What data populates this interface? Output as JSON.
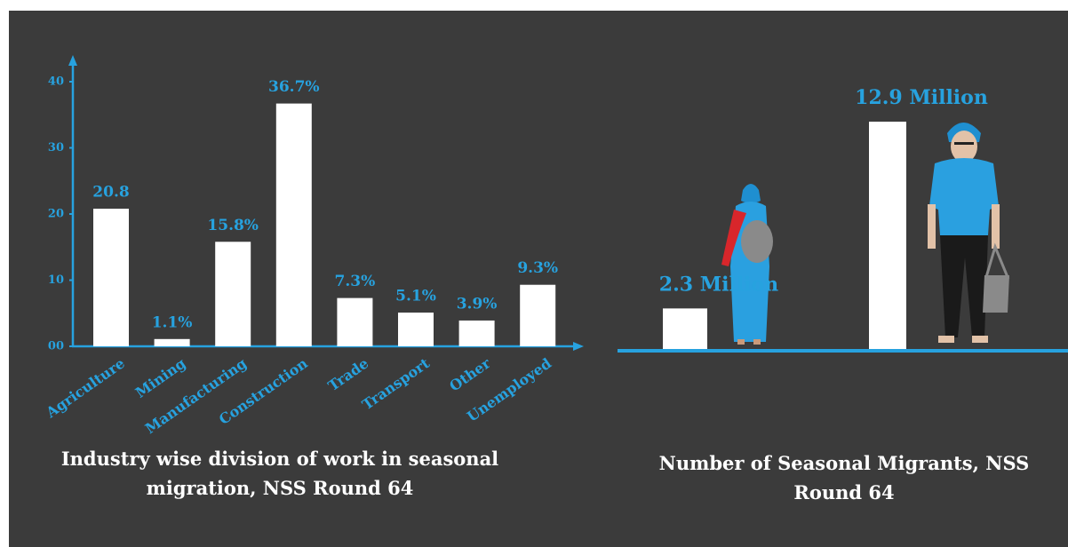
{
  "chart_data": [
    {
      "type": "bar",
      "title": "Industry wise division of work in seasonal migration, NSS Round 64",
      "categories": [
        "Agriculture",
        "Mining",
        "Manufacturing",
        "Construction",
        "Trade",
        "Transport",
        "Other",
        "Unemployed"
      ],
      "values": [
        20.8,
        1.1,
        15.8,
        36.7,
        7.3,
        5.1,
        3.9,
        9.3
      ],
      "value_labels": [
        "20.8",
        "1.1%",
        "15.8%",
        "36.7%",
        "7.3%",
        "5.1%",
        "3.9%",
        "9.3%"
      ],
      "color": "#ffffff",
      "ylim": [
        0,
        40
      ],
      "yticks": [
        {
          "value": 0,
          "label": "00"
        },
        10,
        20,
        30,
        40
      ]
    },
    {
      "type": "bar",
      "title": "Number of Seasonal Migrants, NSS Round 64",
      "values": [
        2.3,
        12.9
      ],
      "value_labels": [
        "2.3 Million",
        "12.9 Million"
      ],
      "color": "#ffffff"
    }
  ]
}
